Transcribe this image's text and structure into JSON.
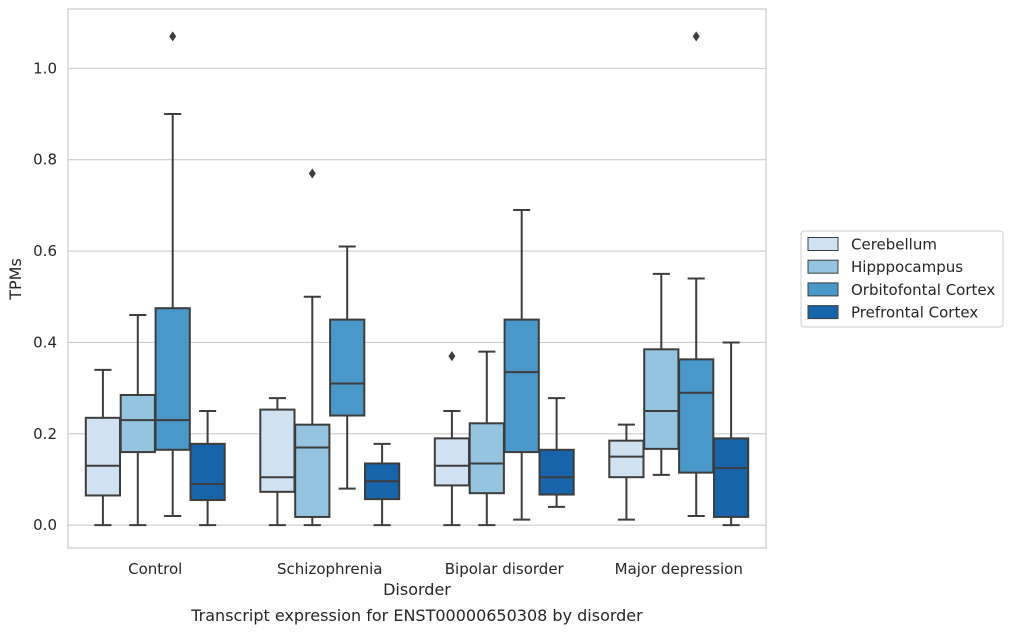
{
  "caption": "Transcript expression for ENST00000650308 by disorder",
  "chart_data": {
    "type": "box",
    "xlabel": "Disorder",
    "ylabel": "TPMs",
    "ylim": [
      -0.05,
      1.13
    ],
    "yticks": [
      0.0,
      0.2,
      0.4,
      0.6,
      0.8,
      1.0
    ],
    "ytick_labels": [
      "0.0",
      "0.2",
      "0.4",
      "0.6",
      "0.8",
      "1.0"
    ],
    "grid": "horizontal",
    "legend_position": "right",
    "categories": [
      "Control",
      "Schizophrenia",
      "Bipolar disorder",
      "Major depression"
    ],
    "series": [
      {
        "name": "Cerebellum",
        "color": "#d0e1f2",
        "boxes": [
          {
            "whislo": 0.0,
            "q1": 0.065,
            "med": 0.13,
            "q3": 0.235,
            "whishi": 0.34,
            "fliers": []
          },
          {
            "whislo": 0.0,
            "q1": 0.073,
            "med": 0.105,
            "q3": 0.253,
            "whishi": 0.278,
            "fliers": []
          },
          {
            "whislo": 0.0,
            "q1": 0.087,
            "med": 0.13,
            "q3": 0.19,
            "whishi": 0.25,
            "fliers": [
              0.37
            ]
          },
          {
            "whislo": 0.012,
            "q1": 0.105,
            "med": 0.15,
            "q3": 0.185,
            "whishi": 0.22,
            "fliers": []
          }
        ]
      },
      {
        "name": "Hipppocampus",
        "color": "#94c4df",
        "boxes": [
          {
            "whislo": 0.0,
            "q1": 0.16,
            "med": 0.23,
            "q3": 0.285,
            "whishi": 0.46,
            "fliers": []
          },
          {
            "whislo": 0.0,
            "q1": 0.018,
            "med": 0.17,
            "q3": 0.22,
            "whishi": 0.5,
            "fliers": [
              0.77
            ]
          },
          {
            "whislo": 0.0,
            "q1": 0.07,
            "med": 0.135,
            "q3": 0.223,
            "whishi": 0.38,
            "fliers": []
          },
          {
            "whislo": 0.11,
            "q1": 0.167,
            "med": 0.25,
            "q3": 0.385,
            "whishi": 0.55,
            "fliers": []
          }
        ]
      },
      {
        "name": "Orbitofontal Cortex",
        "color": "#4a98c9",
        "boxes": [
          {
            "whislo": 0.02,
            "q1": 0.165,
            "med": 0.23,
            "q3": 0.475,
            "whishi": 0.9,
            "fliers": [
              1.07
            ]
          },
          {
            "whislo": 0.08,
            "q1": 0.24,
            "med": 0.31,
            "q3": 0.45,
            "whishi": 0.61,
            "fliers": []
          },
          {
            "whislo": 0.012,
            "q1": 0.16,
            "med": 0.335,
            "q3": 0.45,
            "whishi": 0.69,
            "fliers": []
          },
          {
            "whislo": 0.02,
            "q1": 0.115,
            "med": 0.29,
            "q3": 0.363,
            "whishi": 0.54,
            "fliers": [
              1.07
            ]
          }
        ]
      },
      {
        "name": "Prefrontal Cortex",
        "color": "#1764ab",
        "boxes": [
          {
            "whislo": 0.0,
            "q1": 0.055,
            "med": 0.09,
            "q3": 0.178,
            "whishi": 0.25,
            "fliers": []
          },
          {
            "whislo": 0.0,
            "q1": 0.057,
            "med": 0.096,
            "q3": 0.135,
            "whishi": 0.178,
            "fliers": []
          },
          {
            "whislo": 0.04,
            "q1": 0.067,
            "med": 0.105,
            "q3": 0.165,
            "whishi": 0.278,
            "fliers": []
          },
          {
            "whislo": 0.0,
            "q1": 0.018,
            "med": 0.125,
            "q3": 0.19,
            "whishi": 0.4,
            "fliers": []
          }
        ]
      }
    ]
  }
}
